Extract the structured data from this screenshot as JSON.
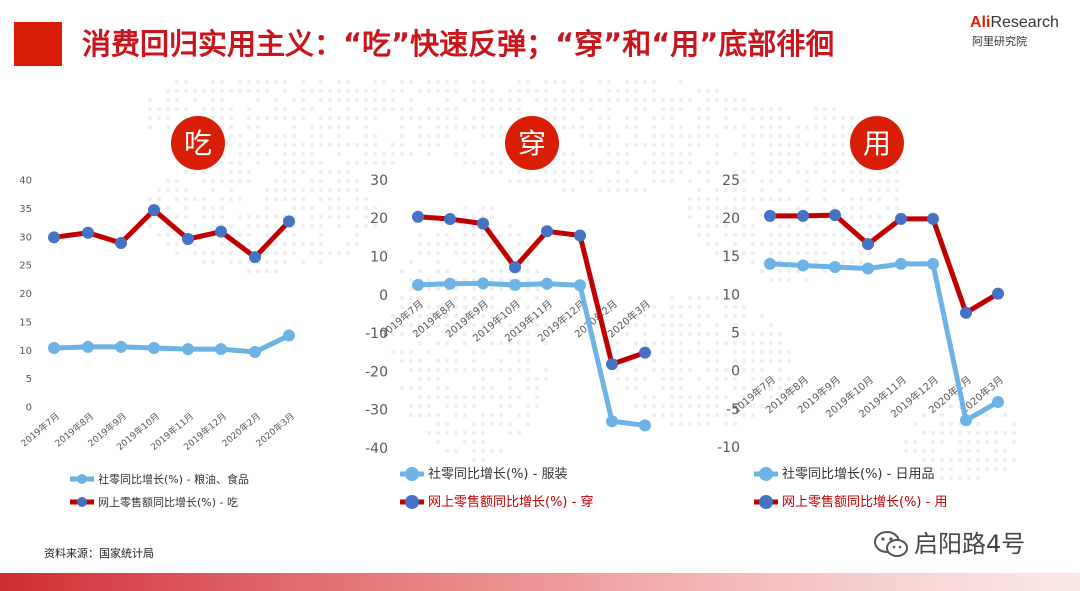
{
  "title": "消费回归实用主义：“吃”快速反弹；“穿”和“用”底部徘徊",
  "logo": {
    "brand_a": "Ali",
    "brand_rest": "Research",
    "sub": "阿里研究院"
  },
  "source": "资料来源：国家统计局",
  "watermark": "启阳路4号",
  "colors": {
    "title": "#c8161d",
    "accent": "#d81e06",
    "series_offline": "#6db3e6",
    "series_online": "#c00000",
    "marker_online": "#4472c4",
    "axis_text": "#595959"
  },
  "chart_data": [
    {
      "type": "line",
      "badge": "吃",
      "categories": [
        "2019年7月",
        "2019年8月",
        "2019年9月",
        "2019年10月",
        "2019年11月",
        "2019年12月",
        "2020年2月",
        "2020年3月"
      ],
      "ylim": [
        0,
        40
      ],
      "yticks": [
        0,
        5,
        10,
        15,
        20,
        25,
        30,
        35,
        40
      ],
      "series": [
        {
          "name": "社零同比增长(%) - 粮油、食品",
          "values": [
            10.4,
            10.6,
            10.6,
            10.4,
            10.2,
            10.2,
            9.7,
            12.6
          ]
        },
        {
          "name": "网上零售额同比增长(%) - 吃",
          "values": [
            29.9,
            30.7,
            28.9,
            34.7,
            29.6,
            30.9,
            26.4,
            32.7
          ]
        }
      ]
    },
    {
      "type": "line",
      "badge": "穿",
      "categories": [
        "2019年7月",
        "2019年8月",
        "2019年9月",
        "2019年10月",
        "2019年11月",
        "2019年12月",
        "2020年2月",
        "2020年3月"
      ],
      "ylim": [
        -40,
        30
      ],
      "yticks": [
        -40,
        -30,
        -20,
        -10,
        0,
        10,
        20,
        30
      ],
      "series": [
        {
          "name": "社零同比增长(%) - 服装",
          "values": [
            2.6,
            2.9,
            3.0,
            2.6,
            2.9,
            2.5,
            -33.0,
            -34.1
          ]
        },
        {
          "name": "网上零售额同比增长(%) - 穿",
          "values": [
            20.4,
            19.8,
            18.6,
            7.2,
            16.6,
            15.5,
            -18.1,
            -15.1
          ]
        }
      ]
    },
    {
      "type": "line",
      "badge": "用",
      "categories": [
        "2019年7月",
        "2019年8月",
        "2019年9月",
        "2019年10月",
        "2019年11月",
        "2019年12月",
        "2020年2月",
        "2020年3月"
      ],
      "ylim": [
        -10,
        25
      ],
      "yticks": [
        -10,
        -5,
        0,
        5,
        10,
        15,
        20,
        25
      ],
      "series": [
        {
          "name": "社零同比增长(%) - 日用品",
          "values": [
            14.0,
            13.8,
            13.6,
            13.4,
            14.0,
            14.0,
            -6.5,
            -4.1
          ]
        },
        {
          "name": "网上零售额同比增长(%) - 用",
          "values": [
            20.3,
            20.3,
            20.4,
            16.6,
            19.9,
            19.9,
            7.6,
            10.1
          ]
        }
      ]
    }
  ]
}
